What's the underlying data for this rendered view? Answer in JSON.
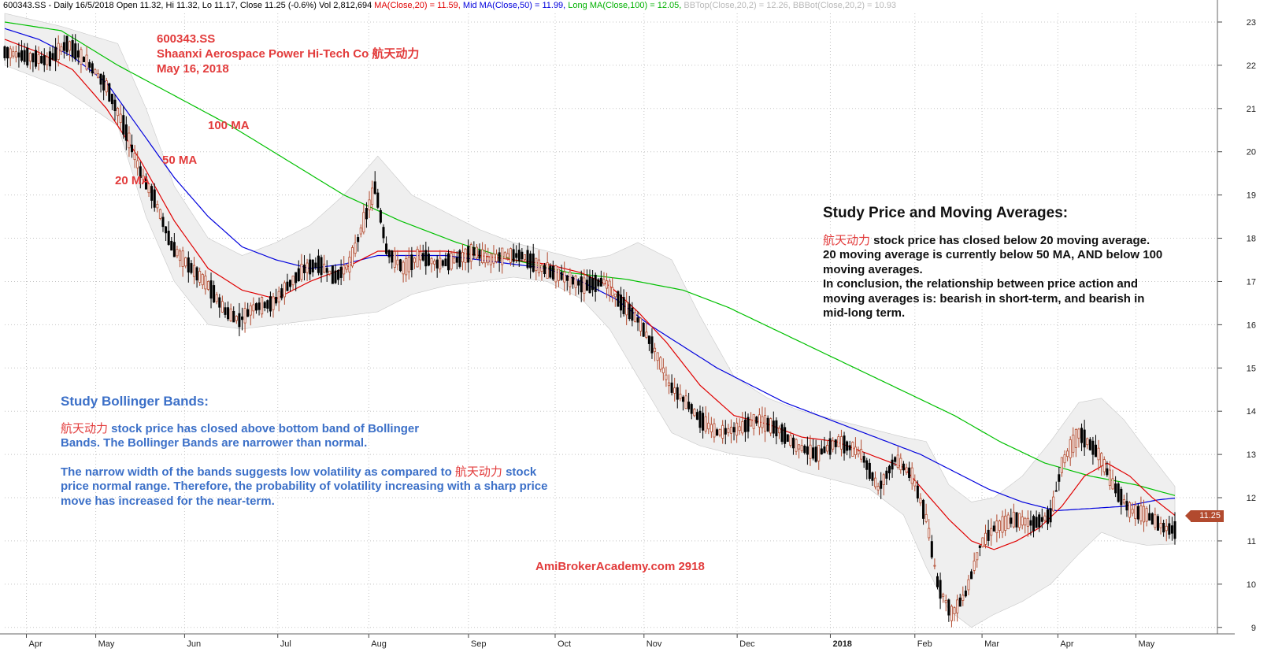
{
  "header": {
    "ticker_info": "600343.SS - Daily 16/5/2018 Open 11.32, Hi 11.32, Lo 11.17, Close 11.25 (-0.6%) Vol 2,812,694",
    "ma20": "MA(Close,20) = 11.59,",
    "ma50": "Mid MA(Close,50) = 11.99,",
    "ma100": "Long MA(Close,100) = 12.05,",
    "bbtop": "BBTop(Close,20,2) = 12.26,",
    "bbbot": "BBBot(Close,20,2) = 10.93"
  },
  "title_block": {
    "ticker": "600343.SS",
    "company": "Shaanxi Aerospace Power Hi-Tech Co  航天动力",
    "date": "May 16, 2018"
  },
  "ma_labels": {
    "ma100": "100 MA",
    "ma50": "50 MA",
    "ma20": "20 MA"
  },
  "ma_study": {
    "heading": "Study Price and Moving Averages:",
    "name": "航天动力",
    "line1": " stock price has closed below 20 moving average.",
    "line2": "20 moving average is currently below 50 MA, AND below 100  moving averages.",
    "line3": "In conclusion, the relationship between price action and moving averages is: bearish in short-term, and bearish in mid-long term."
  },
  "bb_study": {
    "heading": "Study Bollinger Bands:",
    "name": "航天动力",
    "line1": " stock price has closed above bottom band of Bollinger Bands.  The Bollinger Bands are narrower than normal.",
    "line2a": "The narrow width of the bands suggests low volatility as compared to ",
    "line2b": " stock price normal range.  Therefore, the probability of volatility increasing with a sharp price move has increased for the near-term."
  },
  "watermark": "AmiBrokerAcademy.com   2918",
  "last_price": "11.25",
  "colors": {
    "candle": "#b24a2e",
    "ma20": "#e00000",
    "ma50": "#0000dd",
    "ma100": "#00c000",
    "band_fill": "#efefef",
    "band_edge": "#c8c8c8"
  },
  "chart_data": {
    "type": "candlestick",
    "y_ticks": [
      "23",
      "22",
      "21",
      "20",
      "19",
      "18",
      "17",
      "16",
      "15",
      "14",
      "13",
      "12",
      "11",
      "10",
      "9"
    ],
    "ylim": [
      8.85,
      23.2
    ],
    "x_labels": [
      "Apr",
      "May",
      "Jun",
      "Jul",
      "Aug",
      "Sep",
      "Oct",
      "Nov",
      "Dec",
      "2018",
      "Feb",
      "Mar",
      "Apr",
      "May"
    ],
    "grid": true,
    "price_path": [
      [
        0,
        22.3
      ],
      [
        8,
        22.2
      ],
      [
        15,
        22.1
      ],
      [
        22,
        22.5
      ],
      [
        30,
        22.0
      ],
      [
        36,
        21.5
      ],
      [
        42,
        20.6
      ],
      [
        48,
        19.5
      ],
      [
        53,
        18.9
      ],
      [
        59,
        17.8
      ],
      [
        66,
        17.3
      ],
      [
        72,
        16.9
      ],
      [
        78,
        16.3
      ],
      [
        83,
        16.1
      ],
      [
        88,
        16.4
      ],
      [
        95,
        16.5
      ],
      [
        100,
        16.9
      ],
      [
        106,
        17.3
      ],
      [
        111,
        17.4
      ],
      [
        117,
        17.1
      ],
      [
        122,
        17.4
      ],
      [
        127,
        18.4
      ],
      [
        131,
        19.2
      ],
      [
        135,
        17.7
      ],
      [
        141,
        17.3
      ],
      [
        147,
        17.6
      ],
      [
        153,
        17.4
      ],
      [
        160,
        17.5
      ],
      [
        166,
        17.7
      ],
      [
        171,
        17.5
      ],
      [
        177,
        17.6
      ],
      [
        183,
        17.6
      ],
      [
        190,
        17.3
      ],
      [
        198,
        17.1
      ],
      [
        205,
        16.9
      ],
      [
        212,
        17.0
      ],
      [
        218,
        16.5
      ],
      [
        224,
        16.1
      ],
      [
        230,
        15.4
      ],
      [
        235,
        14.6
      ],
      [
        241,
        14.2
      ],
      [
        246,
        13.8
      ],
      [
        252,
        13.5
      ],
      [
        260,
        13.6
      ],
      [
        266,
        13.8
      ],
      [
        273,
        13.6
      ],
      [
        280,
        13.2
      ],
      [
        287,
        13.0
      ],
      [
        295,
        13.3
      ],
      [
        303,
        13.0
      ],
      [
        309,
        12.2
      ],
      [
        315,
        12.9
      ],
      [
        321,
        12.5
      ],
      [
        326,
        11.5
      ],
      [
        330,
        10.0
      ],
      [
        335,
        9.3
      ],
      [
        340,
        9.8
      ],
      [
        345,
        10.9
      ],
      [
        350,
        11.3
      ],
      [
        357,
        11.5
      ],
      [
        364,
        11.4
      ],
      [
        370,
        11.6
      ],
      [
        374,
        12.8
      ],
      [
        380,
        13.5
      ],
      [
        387,
        13.0
      ],
      [
        392,
        12.3
      ],
      [
        398,
        11.7
      ],
      [
        404,
        11.6
      ],
      [
        410,
        11.3
      ],
      [
        414,
        11.25
      ]
    ],
    "ma20": [
      [
        0,
        22.6
      ],
      [
        12,
        22.3
      ],
      [
        24,
        21.9
      ],
      [
        36,
        21.0
      ],
      [
        48,
        19.8
      ],
      [
        60,
        18.4
      ],
      [
        72,
        17.3
      ],
      [
        84,
        16.8
      ],
      [
        96,
        16.6
      ],
      [
        108,
        17.0
      ],
      [
        120,
        17.3
      ],
      [
        132,
        17.7
      ],
      [
        144,
        17.7
      ],
      [
        156,
        17.7
      ],
      [
        168,
        17.6
      ],
      [
        180,
        17.5
      ],
      [
        192,
        17.4
      ],
      [
        204,
        17.2
      ],
      [
        214,
        16.9
      ],
      [
        224,
        16.3
      ],
      [
        234,
        15.6
      ],
      [
        246,
        14.6
      ],
      [
        258,
        13.9
      ],
      [
        270,
        13.7
      ],
      [
        282,
        13.4
      ],
      [
        294,
        13.3
      ],
      [
        306,
        13.0
      ],
      [
        318,
        12.7
      ],
      [
        326,
        12.1
      ],
      [
        334,
        11.5
      ],
      [
        342,
        11.0
      ],
      [
        350,
        10.8
      ],
      [
        358,
        11.0
      ],
      [
        366,
        11.3
      ],
      [
        374,
        11.8
      ],
      [
        382,
        12.5
      ],
      [
        390,
        12.8
      ],
      [
        398,
        12.5
      ],
      [
        406,
        12.0
      ],
      [
        414,
        11.59
      ]
    ],
    "ma50": [
      [
        0,
        22.85
      ],
      [
        12,
        22.6
      ],
      [
        24,
        22.2
      ],
      [
        36,
        21.6
      ],
      [
        48,
        20.5
      ],
      [
        60,
        19.4
      ],
      [
        72,
        18.5
      ],
      [
        84,
        17.8
      ],
      [
        96,
        17.5
      ],
      [
        108,
        17.3
      ],
      [
        120,
        17.4
      ],
      [
        132,
        17.6
      ],
      [
        144,
        17.6
      ],
      [
        156,
        17.6
      ],
      [
        168,
        17.5
      ],
      [
        180,
        17.4
      ],
      [
        192,
        17.3
      ],
      [
        204,
        17.0
      ],
      [
        216,
        16.6
      ],
      [
        228,
        16.0
      ],
      [
        240,
        15.5
      ],
      [
        252,
        15.0
      ],
      [
        264,
        14.6
      ],
      [
        276,
        14.2
      ],
      [
        288,
        13.9
      ],
      [
        300,
        13.6
      ],
      [
        312,
        13.3
      ],
      [
        324,
        13.0
      ],
      [
        336,
        12.6
      ],
      [
        348,
        12.2
      ],
      [
        360,
        11.9
      ],
      [
        372,
        11.7
      ],
      [
        384,
        11.75
      ],
      [
        396,
        11.8
      ],
      [
        408,
        11.95
      ],
      [
        414,
        11.99
      ]
    ],
    "ma100": [
      [
        0,
        23.0
      ],
      [
        20,
        22.8
      ],
      [
        40,
        22.0
      ],
      [
        60,
        21.3
      ],
      [
        80,
        20.6
      ],
      [
        100,
        19.8
      ],
      [
        120,
        19.0
      ],
      [
        140,
        18.4
      ],
      [
        160,
        17.9
      ],
      [
        180,
        17.5
      ],
      [
        200,
        17.2
      ],
      [
        220,
        17.05
      ],
      [
        240,
        16.8
      ],
      [
        256,
        16.4
      ],
      [
        272,
        15.9
      ],
      [
        288,
        15.4
      ],
      [
        304,
        14.9
      ],
      [
        320,
        14.4
      ],
      [
        336,
        13.9
      ],
      [
        352,
        13.3
      ],
      [
        368,
        12.8
      ],
      [
        384,
        12.5
      ],
      [
        400,
        12.3
      ],
      [
        414,
        12.05
      ]
    ],
    "bb_top": [
      [
        0,
        23.2
      ],
      [
        20,
        22.9
      ],
      [
        40,
        22.5
      ],
      [
        50,
        21.0
      ],
      [
        60,
        19.2
      ],
      [
        72,
        18.0
      ],
      [
        84,
        17.6
      ],
      [
        96,
        17.9
      ],
      [
        108,
        18.3
      ],
      [
        120,
        19.0
      ],
      [
        132,
        19.9
      ],
      [
        144,
        19.0
      ],
      [
        156,
        18.6
      ],
      [
        168,
        18.2
      ],
      [
        180,
        17.9
      ],
      [
        192,
        17.7
      ],
      [
        204,
        17.5
      ],
      [
        214,
        17.6
      ],
      [
        224,
        17.9
      ],
      [
        236,
        17.5
      ],
      [
        246,
        16.2
      ],
      [
        258,
        14.8
      ],
      [
        270,
        14.3
      ],
      [
        282,
        14.0
      ],
      [
        294,
        13.8
      ],
      [
        306,
        13.6
      ],
      [
        318,
        13.4
      ],
      [
        326,
        13.3
      ],
      [
        334,
        12.3
      ],
      [
        342,
        11.9
      ],
      [
        350,
        12.0
      ],
      [
        360,
        12.5
      ],
      [
        370,
        13.3
      ],
      [
        380,
        14.2
      ],
      [
        388,
        14.3
      ],
      [
        396,
        13.8
      ],
      [
        404,
        13.1
      ],
      [
        414,
        12.26
      ]
    ],
    "bb_bottom": [
      [
        0,
        22.0
      ],
      [
        20,
        21.5
      ],
      [
        40,
        20.6
      ],
      [
        50,
        18.5
      ],
      [
        60,
        17.0
      ],
      [
        72,
        16.0
      ],
      [
        84,
        15.9
      ],
      [
        96,
        16.0
      ],
      [
        108,
        16.1
      ],
      [
        120,
        16.2
      ],
      [
        132,
        16.3
      ],
      [
        144,
        16.7
      ],
      [
        156,
        16.9
      ],
      [
        168,
        17.0
      ],
      [
        180,
        17.1
      ],
      [
        192,
        17.0
      ],
      [
        204,
        16.6
      ],
      [
        214,
        15.9
      ],
      [
        224,
        14.8
      ],
      [
        236,
        13.5
      ],
      [
        246,
        13.2
      ],
      [
        258,
        13.0
      ],
      [
        270,
        12.9
      ],
      [
        282,
        12.6
      ],
      [
        294,
        12.4
      ],
      [
        306,
        12.2
      ],
      [
        318,
        11.6
      ],
      [
        326,
        10.4
      ],
      [
        334,
        9.4
      ],
      [
        342,
        9.0
      ],
      [
        350,
        9.3
      ],
      [
        360,
        9.6
      ],
      [
        370,
        10.0
      ],
      [
        380,
        10.7
      ],
      [
        388,
        11.2
      ],
      [
        396,
        11.0
      ],
      [
        404,
        10.9
      ],
      [
        414,
        10.93
      ]
    ]
  }
}
